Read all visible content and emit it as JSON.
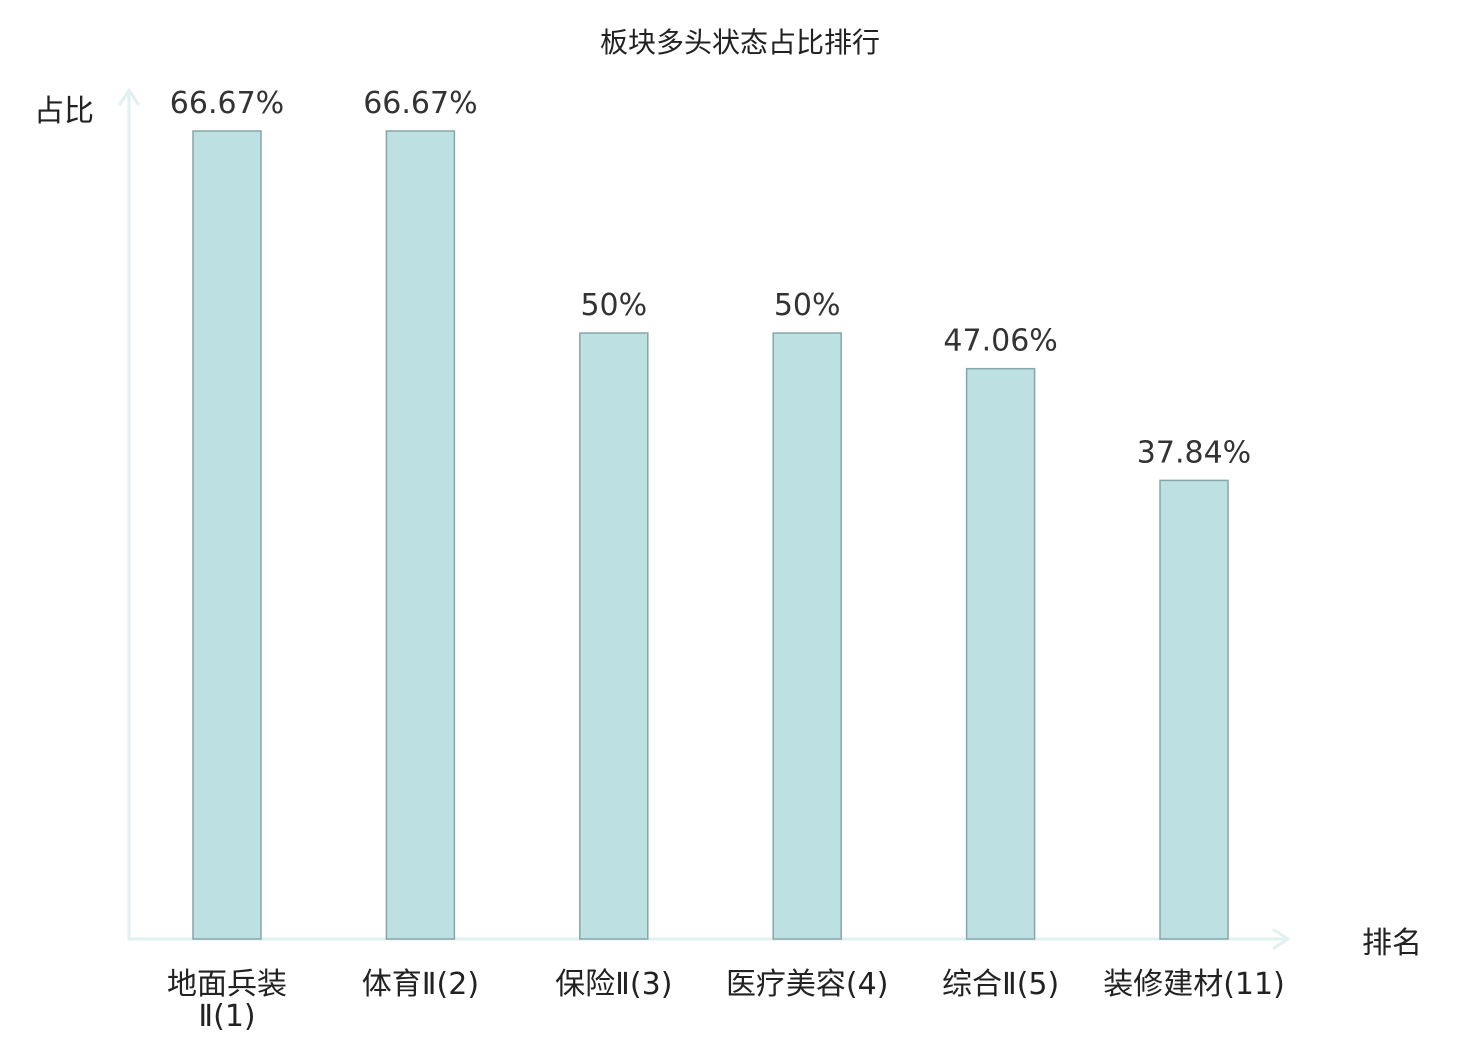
{
  "chart_data": {
    "type": "bar",
    "title": "板块多头状态占比排行",
    "ylabel": "占比",
    "xlabel": "排名",
    "categories": [
      [
        "地面兵装",
        "Ⅱ(1)"
      ],
      [
        "体育Ⅱ(2)"
      ],
      [
        "保险Ⅱ(3)"
      ],
      [
        "医疗美容(4)"
      ],
      [
        "综合Ⅱ(5)"
      ],
      [
        "装修建材(11)"
      ]
    ],
    "values": [
      66.67,
      66.67,
      50,
      50,
      47.06,
      37.84
    ],
    "value_labels": [
      "66.67%",
      "66.67%",
      "50%",
      "50%",
      "47.06%",
      "37.84%"
    ],
    "highlight_index": 5,
    "ylim": [
      0,
      66.67
    ],
    "grid": false,
    "legend": "none"
  },
  "colors": {
    "bar_fill": "#bde0e3",
    "bar_stroke": "#86a5a8",
    "axis": "#e0f1ef",
    "text": "#222222",
    "value_text": "#333333",
    "highlight": "#e0141e"
  }
}
